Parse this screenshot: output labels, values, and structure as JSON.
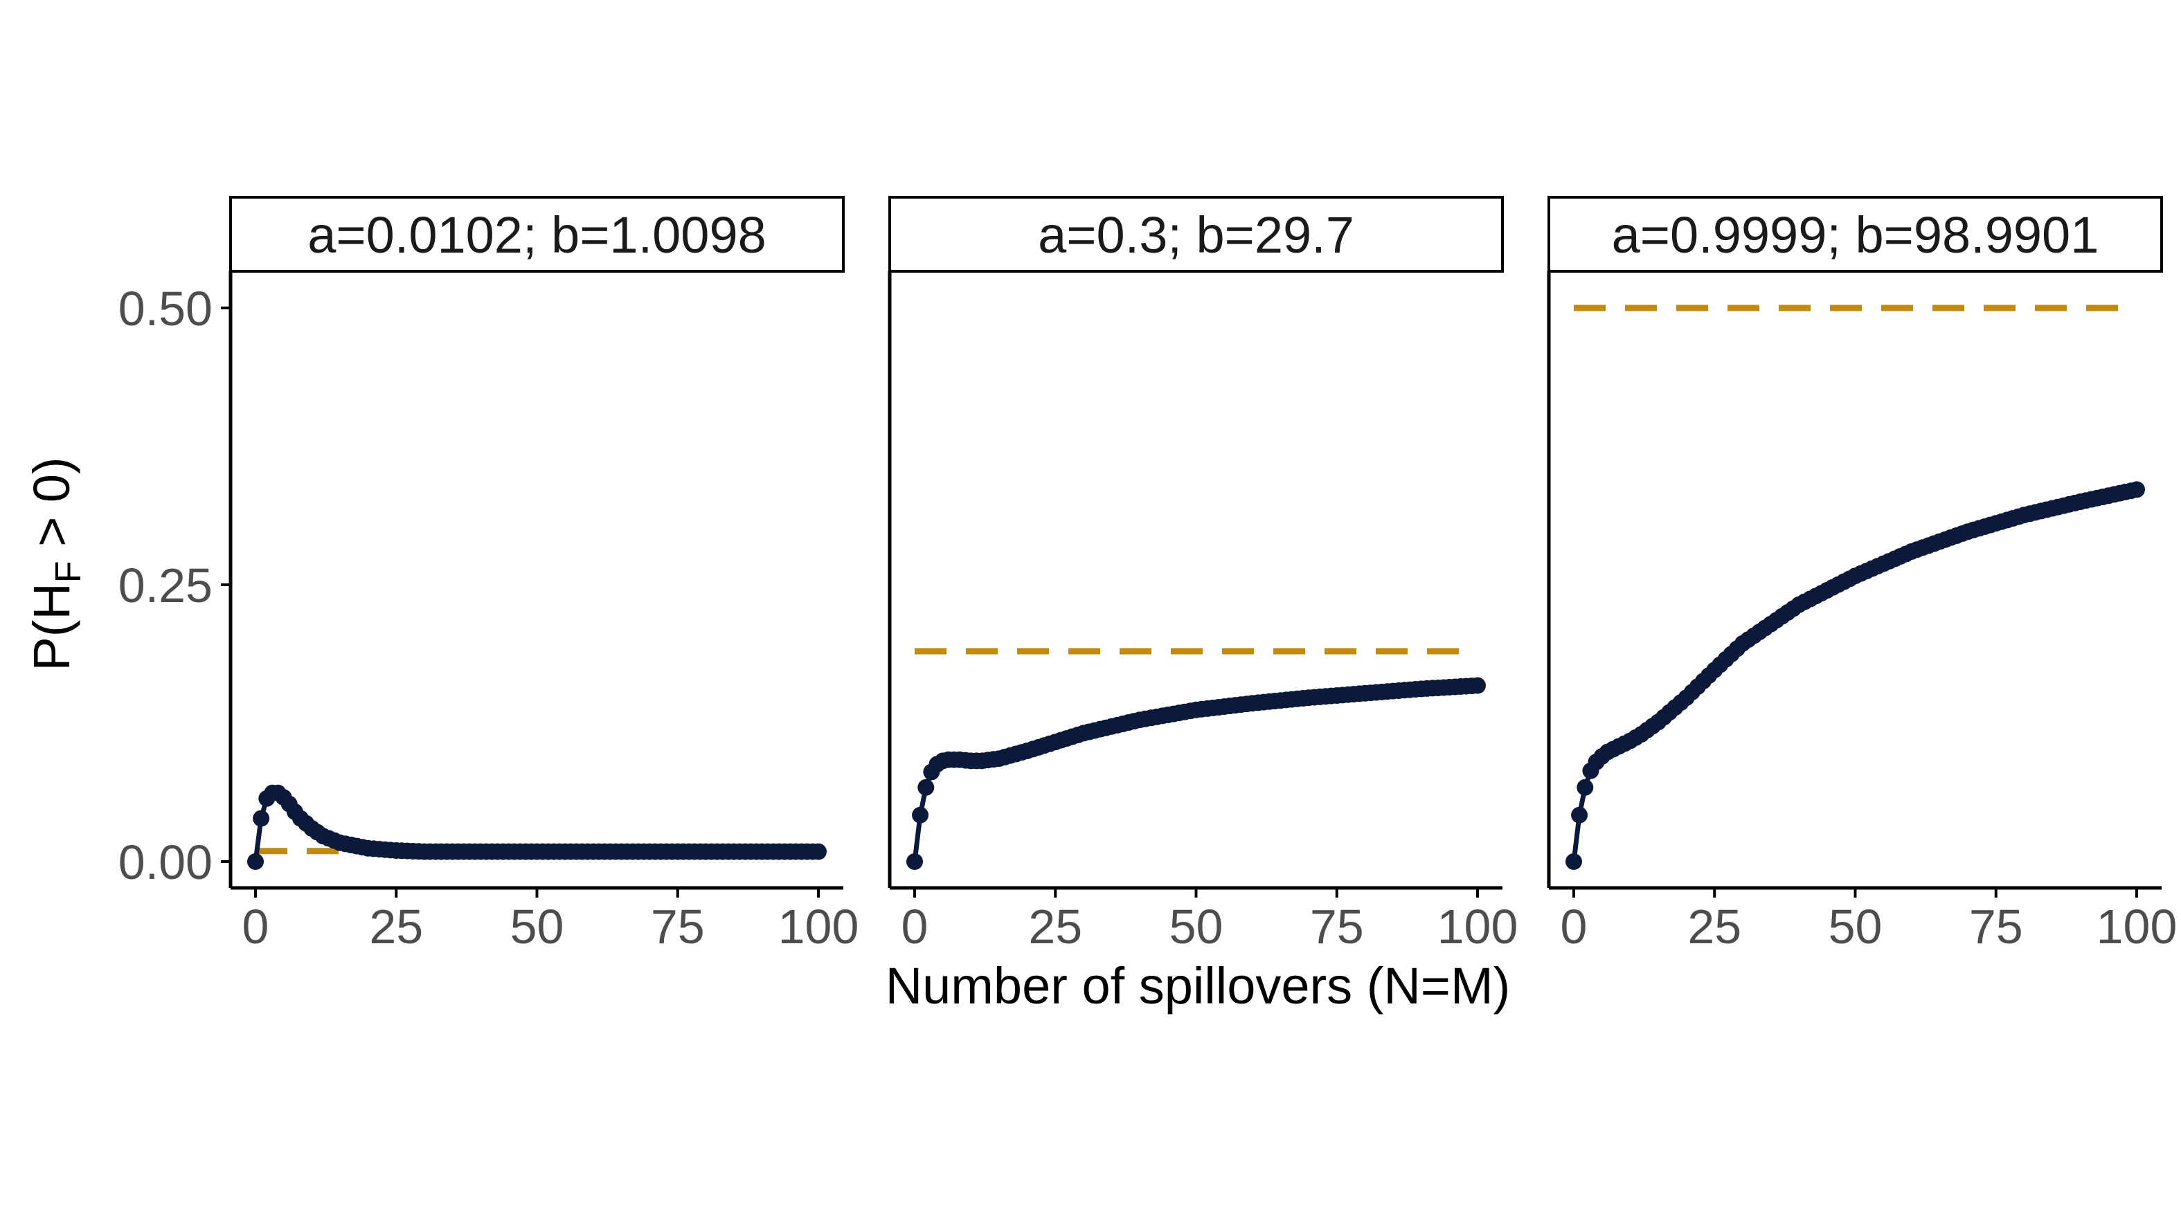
{
  "chart_data": {
    "type": "line",
    "xlabel": "Number of spillovers (N=M)",
    "ylabel": {
      "prefix": "P(H",
      "subscript": "F",
      "suffix": " > 0)"
    },
    "xlim": [
      0,
      100
    ],
    "ylim": [
      0,
      0.5
    ],
    "x_ticks": [
      0,
      25,
      50,
      75,
      100
    ],
    "x_tick_labels": [
      "0",
      "25",
      "50",
      "75",
      "100"
    ],
    "y_ticks": [
      0,
      0.25,
      0.5
    ],
    "y_tick_labels": [
      "0.00",
      "0.25",
      "0.50"
    ],
    "grid": false,
    "colors": {
      "points": "#0b1a3a",
      "dashed": "#c08a0f",
      "axis": "#000000"
    },
    "panels": [
      {
        "title": "a=0.0102; b=1.0098",
        "asymptote": 0.0095,
        "series": {
          "x": [
            0,
            1,
            2,
            3,
            4,
            5,
            6,
            7,
            8,
            10,
            12,
            15,
            20,
            25,
            30,
            40,
            50,
            60,
            70,
            80,
            90,
            100
          ],
          "y": [
            0,
            0.039,
            0.057,
            0.062,
            0.062,
            0.058,
            0.052,
            0.045,
            0.039,
            0.03,
            0.023,
            0.017,
            0.012,
            0.01,
            0.009,
            0.009,
            0.009,
            0.009,
            0.009,
            0.009,
            0.009,
            0.009
          ]
        }
      },
      {
        "title": "a=0.3; b=29.7",
        "asymptote": 0.19,
        "series": {
          "x": [
            0,
            1,
            2,
            3,
            4,
            5,
            6,
            8,
            10,
            12,
            15,
            20,
            25,
            30,
            40,
            50,
            60,
            70,
            80,
            90,
            100
          ],
          "y": [
            0,
            0.042,
            0.067,
            0.081,
            0.088,
            0.091,
            0.092,
            0.092,
            0.091,
            0.091,
            0.093,
            0.1,
            0.108,
            0.116,
            0.128,
            0.137,
            0.143,
            0.148,
            0.152,
            0.156,
            0.159
          ]
        }
      },
      {
        "title": "a=0.9999; b=98.9901",
        "asymptote": 0.5,
        "series": {
          "x": [
            0,
            1,
            2,
            3,
            4,
            5,
            6,
            8,
            10,
            12,
            15,
            20,
            25,
            30,
            40,
            50,
            60,
            70,
            80,
            90,
            100
          ],
          "y": [
            0,
            0.042,
            0.067,
            0.082,
            0.09,
            0.095,
            0.099,
            0.104,
            0.109,
            0.115,
            0.126,
            0.148,
            0.173,
            0.197,
            0.232,
            0.258,
            0.28,
            0.298,
            0.313,
            0.325,
            0.336
          ]
        }
      }
    ]
  }
}
